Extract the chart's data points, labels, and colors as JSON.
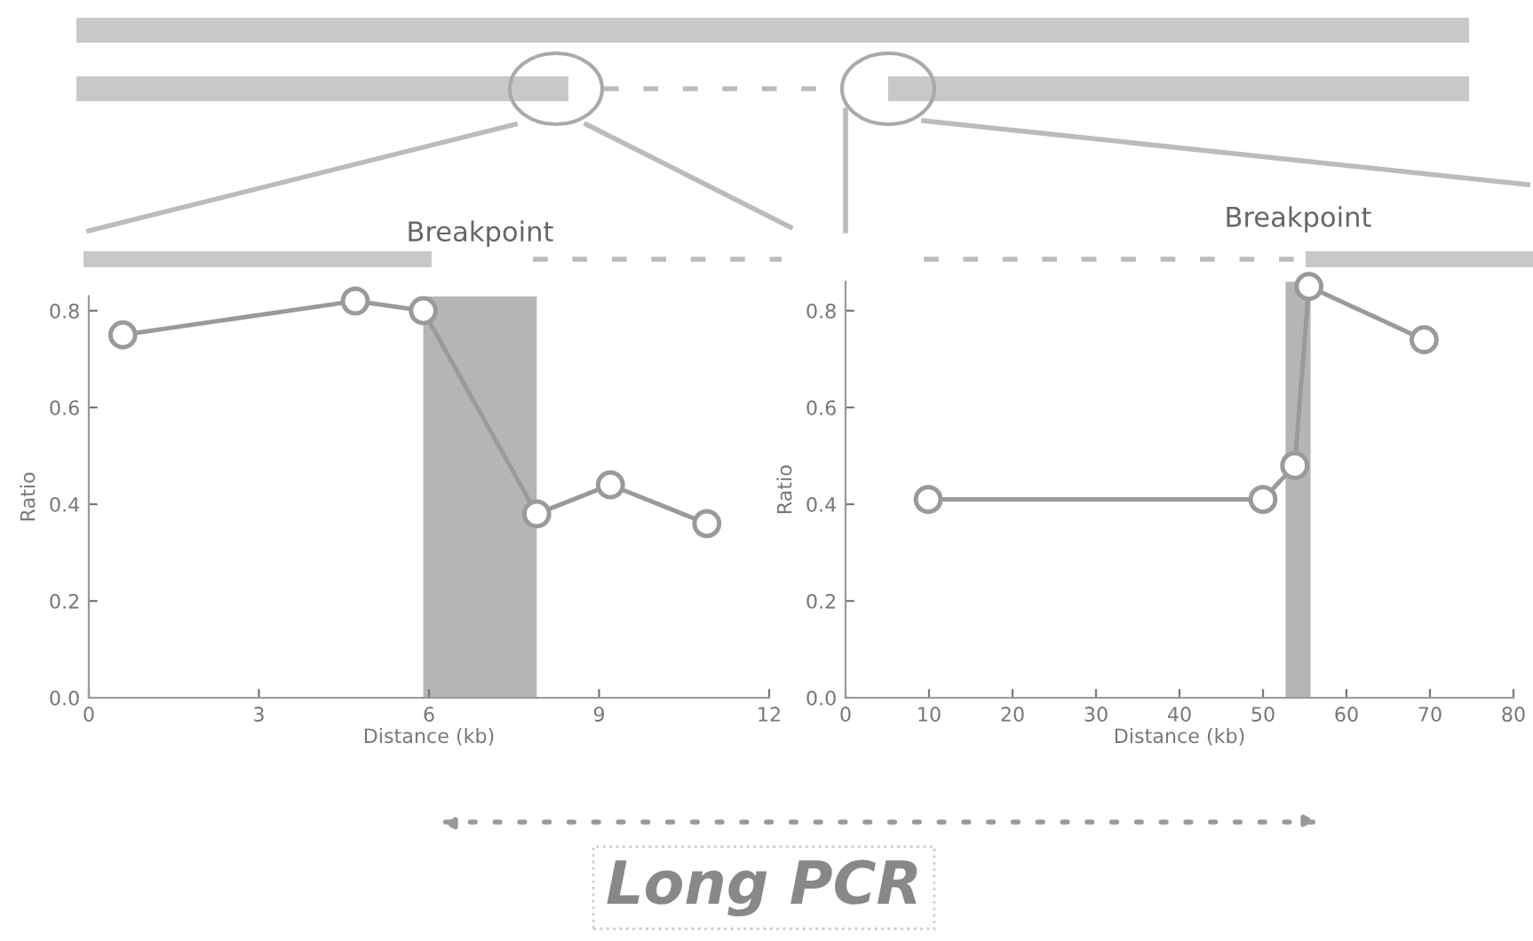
{
  "chart_data": [
    {
      "type": "line",
      "xlabel": "Distance (kb)",
      "ylabel": "Ratio",
      "marker": "circle",
      "grid": false,
      "legend": false,
      "x": [
        0.6,
        4.7,
        5.9,
        7.9,
        9.2,
        10.9
      ],
      "series": [
        {
          "color": "#9a9a9a",
          "values": [
            0.75,
            0.82,
            0.8,
            0.38,
            0.44,
            0.36
          ]
        }
      ],
      "xlim": [
        0,
        12
      ],
      "xticks": [
        0,
        3,
        6,
        9,
        12
      ],
      "ylim": [
        0,
        0.83
      ],
      "yticks": [
        {
          "value": 0,
          "label": "0.0"
        },
        0.2,
        0.4,
        0.6,
        0.8
      ],
      "bands": [
        {
          "axis": "x",
          "from": 5.9,
          "to": 7.9,
          "label": "Breakpoint",
          "color": "#b5b5b5"
        }
      ],
      "annotations": [
        "Long PCR"
      ]
    },
    {
      "type": "line",
      "xlabel": "Distance (kb)",
      "ylabel": "Ratio",
      "marker": "circle",
      "grid": false,
      "legend": false,
      "x": [
        9.9,
        50,
        53.8,
        55.5,
        69.3
      ],
      "series": [
        {
          "color": "#9a9a9a",
          "values": [
            0.41,
            0.41,
            0.48,
            0.85,
            0.74
          ]
        }
      ],
      "xlim": [
        0,
        80
      ],
      "xticks": [
        0,
        10,
        20,
        30,
        40,
        50,
        60,
        70,
        80
      ],
      "ylim": [
        0,
        0.86
      ],
      "yticks": [
        {
          "value": 0,
          "label": "0.0"
        },
        0.2,
        0.4,
        0.6,
        0.8
      ],
      "bands": [
        {
          "axis": "x",
          "from": 52.7,
          "to": 55.7,
          "label": "Breakpoint",
          "color": "#b5b5b5"
        }
      ]
    }
  ]
}
